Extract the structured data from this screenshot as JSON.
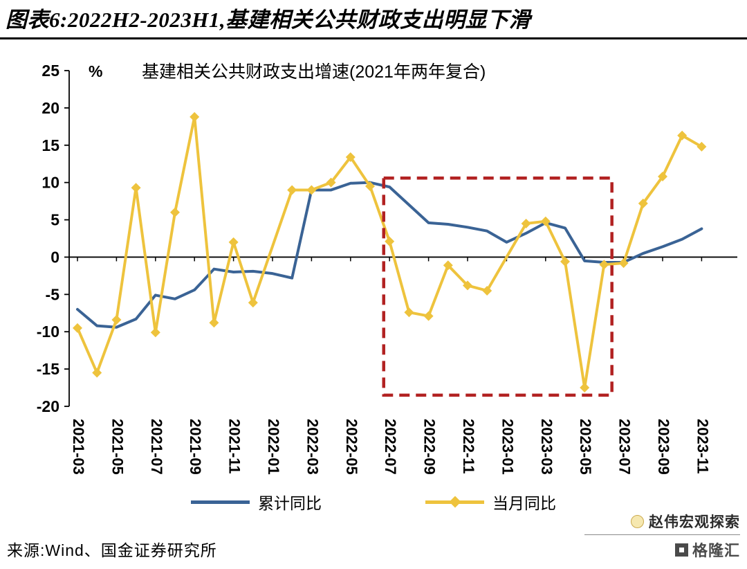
{
  "header": {
    "title": "图表6:2022H2-2023H1,基建相关公共财政支出明显下滑"
  },
  "chart_data": {
    "type": "line",
    "title": "基建相关公共财政支出增速(2021年两年复合)",
    "unit_label": "%",
    "ylim": [
      -20,
      25
    ],
    "ytick_step": 5,
    "grid": false,
    "legend_position": "bottom",
    "x_label_every": 2,
    "x": [
      "2021-03",
      "2021-04",
      "2021-05",
      "2021-06",
      "2021-07",
      "2021-08",
      "2021-09",
      "2021-10",
      "2021-11",
      "2021-12",
      "2022-01",
      "2022-02",
      "2022-03",
      "2022-04",
      "2022-05",
      "2022-06",
      "2022-07",
      "2022-08",
      "2022-09",
      "2022-10",
      "2022-11",
      "2022-12",
      "2023-01",
      "2023-02",
      "2023-03",
      "2023-04",
      "2023-05",
      "2023-06",
      "2023-07",
      "2023-08",
      "2023-09",
      "2023-10",
      "2023-11"
    ],
    "series": [
      {
        "id": "cumulative-yoy",
        "name": "累计同比",
        "color": "#3a6395",
        "marker": "none",
        "values": [
          -7.0,
          -9.2,
          -9.4,
          -8.3,
          -5.1,
          -5.6,
          -4.4,
          -1.6,
          -2.0,
          -1.9,
          -2.2,
          -2.8,
          9.0,
          9.0,
          9.9,
          10.0,
          9.4,
          7.0,
          4.6,
          4.4,
          4.0,
          3.5,
          2.0,
          3.2,
          4.6,
          3.9,
          -0.5,
          -0.7,
          -0.7,
          0.5,
          1.4,
          2.4,
          3.8
        ]
      },
      {
        "id": "monthly-yoy",
        "name": "当月同比",
        "color": "#eec33d",
        "marker": "diamond",
        "values": [
          -9.5,
          -15.5,
          -8.4,
          9.3,
          -10.1,
          6.0,
          18.8,
          -8.8,
          2.0,
          -6.1,
          null,
          9.0,
          9.0,
          10.0,
          13.4,
          9.5,
          2.1,
          -7.4,
          -7.9,
          -1.1,
          -3.8,
          -4.5,
          null,
          4.5,
          4.8,
          -0.6,
          -17.5,
          -1.0,
          -0.8,
          7.2,
          10.8,
          16.3,
          14.8
        ]
      }
    ],
    "highlight_box": {
      "x_from_index": 15.7,
      "x_to_index": 27.4,
      "y_from": -18.5,
      "y_to": 10.6,
      "color": "#b22222",
      "style": "dashed"
    }
  },
  "footer": {
    "source": "来源:Wind、国金证券研究所",
    "brand_name": "赵伟宏观探索",
    "logo_text": "格隆汇"
  }
}
